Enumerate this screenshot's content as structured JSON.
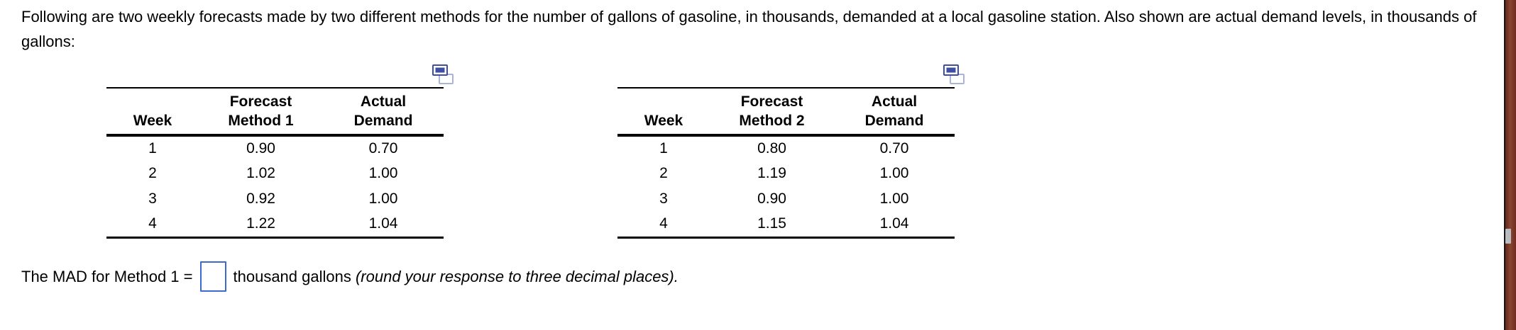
{
  "intro": {
    "text": "Following are two weekly forecasts made by two different methods for the number of gallons of gasoline, in thousands, demanded at a local gasoline station. Also shown are actual demand levels, in thousands of gallons:"
  },
  "tables": [
    {
      "headers": {
        "week": "Week",
        "forecast_line1": "Forecast",
        "forecast_line2": "Method 1",
        "actual_line1": "Actual",
        "actual_line2": "Demand"
      },
      "rows": [
        [
          "1",
          "0.90",
          "0.70"
        ],
        [
          "2",
          "1.02",
          "1.00"
        ],
        [
          "3",
          "0.92",
          "1.00"
        ],
        [
          "4",
          "1.22",
          "1.04"
        ]
      ]
    },
    {
      "headers": {
        "week": "Week",
        "forecast_line1": "Forecast",
        "forecast_line2": "Method 2",
        "actual_line1": "Actual",
        "actual_line2": "Demand"
      },
      "rows": [
        [
          "1",
          "0.80",
          "0.70"
        ],
        [
          "2",
          "1.19",
          "1.00"
        ],
        [
          "3",
          "0.90",
          "1.00"
        ],
        [
          "4",
          "1.15",
          "1.04"
        ]
      ]
    }
  ],
  "question": {
    "prefix": "The MAD for Method 1 =",
    "input_value": "",
    "suffix": "thousand gallons ",
    "note": "(round your response to three decimal places)."
  },
  "icons": {
    "copy": "copy-icon"
  },
  "colors": {
    "accent_blue": "#3b6ace",
    "icon_navy": "#3d4fa0",
    "icon_light_blue": "#aab3da",
    "divider_maroon": "#7a3526",
    "handle_gray": "#b9bcc1",
    "text_black": "#000000"
  }
}
